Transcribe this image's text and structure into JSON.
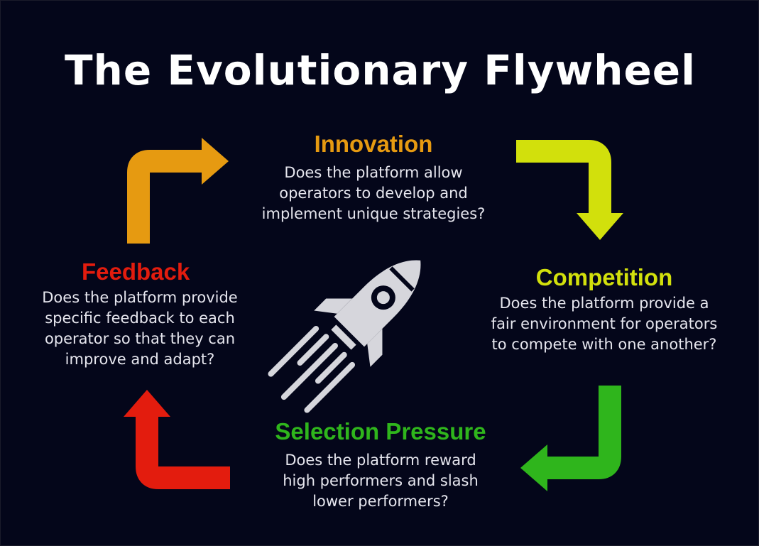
{
  "title": "The Evolutionary Flywheel",
  "stages": {
    "innovation": {
      "title": "Innovation",
      "color": "#e69a11",
      "lines": [
        "Does the platform allow",
        "operators to develop and",
        "implement unique strategies?"
      ]
    },
    "competition": {
      "title": "Competition",
      "color": "#d2e00c",
      "lines": [
        "Does the platform provide a",
        "fair environment for operators",
        "to compete with one another?"
      ]
    },
    "selection": {
      "title": "Selection Pressure",
      "color": "#2fb51c",
      "lines": [
        "Does the platform reward",
        "high performers and slash",
        "lower performers?"
      ]
    },
    "feedback": {
      "title": "Feedback",
      "color": "#e31c0e",
      "lines": [
        "Does the platform provide",
        "specific feedback to each",
        "operator so that they can",
        "improve and adapt?"
      ]
    }
  },
  "icons": {
    "center": "rocket-icon",
    "arrows": [
      "arrow-up-right-icon",
      "arrow-right-down-icon",
      "arrow-down-left-icon",
      "arrow-left-up-icon"
    ]
  },
  "colors": {
    "background": "#04061a",
    "title": "#ffffff",
    "body_text": "#e6e6ee",
    "rocket": "#d6d6dc"
  }
}
